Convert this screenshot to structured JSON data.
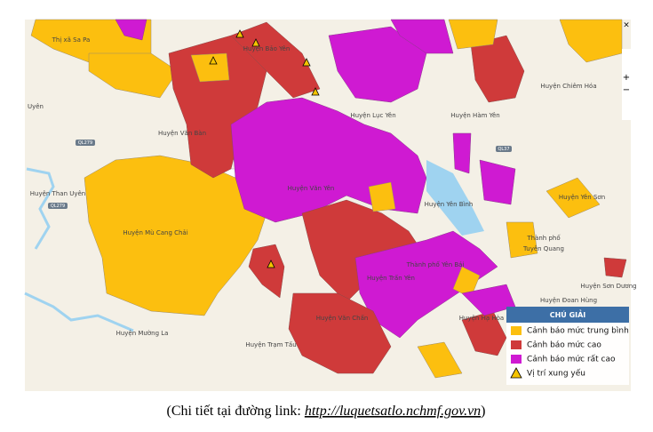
{
  "places": [
    "Thị xã Sa Pa",
    "Huyện Bảo Yên",
    "Uyên",
    "Huyện Văn Bàn",
    "Huyện Than Uyên",
    "Huyện Mù Cang Chải",
    "Huyện Mường La",
    "Huyện Trạm Tấu",
    "Huyện Văn Chấn",
    "Huyện Văn Yên",
    "Huyện Lục Yên",
    "Huyện Hàm Yên",
    "Huyện Chiêm Hóa",
    "Huyện Yên Bình",
    "Huyện Yên Sơn",
    "Thành phố",
    "Tuyên Quang",
    "Thành phố Yên Bái",
    "Huyện Trấn Yên",
    "Huyện Đoan Hùng",
    "Huyện Sơn Dương",
    "Huyện Hạ Hòa"
  ],
  "roads": [
    "QL279",
    "QL279",
    "QL37"
  ],
  "controls": {
    "close": "×",
    "zoom_in": "+",
    "zoom_out": "−"
  },
  "legend": {
    "title": "CHÚ GIẢI",
    "items": [
      {
        "label": "Cảnh báo mức trung bình",
        "color": "#fcbf0f"
      },
      {
        "label": "Cảnh báo mức cao",
        "color": "#cf3a3a"
      },
      {
        "label": "Cảnh báo mức rất cao",
        "color": "#cf1ad2"
      },
      {
        "label": "Vị trí xung yếu"
      }
    ]
  },
  "caption": {
    "prefix": "(Chi tiết tại đường link: ",
    "link": "http://luquetsatlo.nchmf.gov.vn",
    "suffix": ")"
  }
}
